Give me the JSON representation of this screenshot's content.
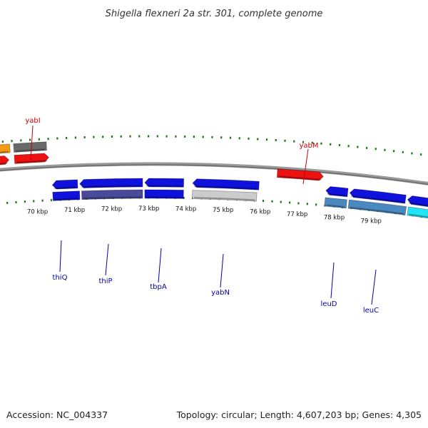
{
  "title": "Shigella flexneri 2a str. 301, complete genome",
  "footer": {
    "accession": "Accession: NC_004337",
    "summary": "Topology: circular; Length: 4,607,203 bp; Genes: 4,305"
  },
  "colors": {
    "forward_label": "#cc0000",
    "reverse_label": "#0000aa",
    "tick": "#1a7a1a",
    "backbone": "#808080",
    "red": "#ee1111",
    "blue": "#1111dd",
    "orange": "#f59a12",
    "gray": "#6a6a6a",
    "lightgray": "#cccccc",
    "purple": "#4a4a9a",
    "steel": "#4a88c0",
    "cyan": "#22e4f4"
  },
  "kbp_ticks": [
    "70 kbp",
    "71 kbp",
    "72 kbp",
    "73 kbp",
    "74 kbp",
    "75 kbp",
    "76 kbp",
    "77 kbp",
    "78 kbp",
    "79 kbp"
  ],
  "gene_labels_forward": [
    "yabI",
    "yabM"
  ],
  "gene_labels_reverse": [
    "thiQ",
    "thiP",
    "tbpA",
    "yabN",
    "leuD",
    "leuC"
  ]
}
